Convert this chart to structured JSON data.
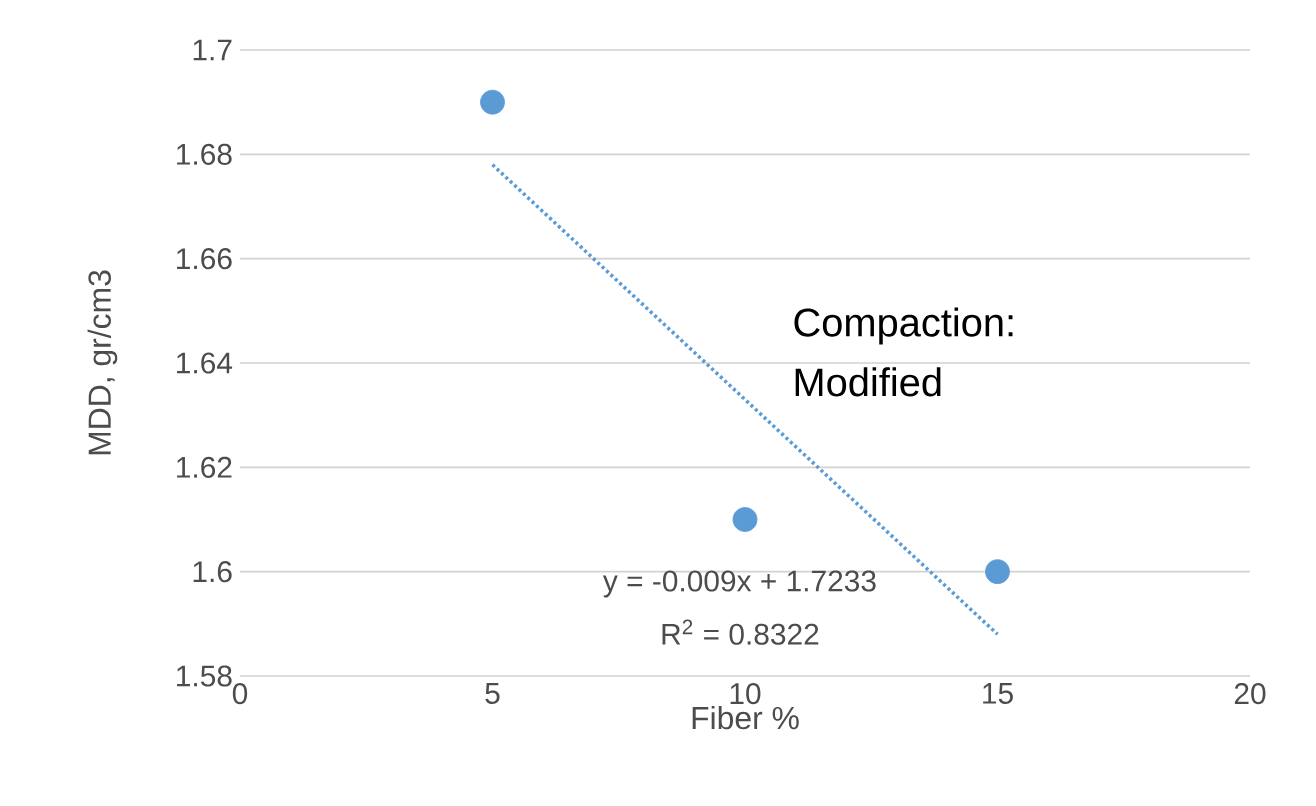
{
  "chart_data": {
    "type": "scatter",
    "xlabel": "Fiber %",
    "ylabel": "MDD, gr/cm3",
    "xlim": [
      0,
      20
    ],
    "xticks": [
      0,
      5,
      10,
      15,
      20
    ],
    "ylim": [
      1.58,
      1.7
    ],
    "yticks": [
      1.58,
      1.6,
      1.62,
      1.64,
      1.66,
      1.68,
      1.7
    ],
    "grid": "y",
    "series": [
      {
        "color": "#5b9bd5",
        "marker": "circle",
        "x": [
          5,
          10,
          15
        ],
        "values": [
          1.69,
          1.61,
          1.6
        ]
      },
      {
        "type": "line",
        "color": "#5b9bd5",
        "marker": "none",
        "line_style": "dotted",
        "x": [
          5,
          15
        ],
        "values": [
          1.678,
          1.588
        ]
      }
    ],
    "annotations": [
      "Compaction: Modified",
      "y = -0.009x + 1.7233",
      "R$^{2}$ = 0.8322"
    ]
  }
}
